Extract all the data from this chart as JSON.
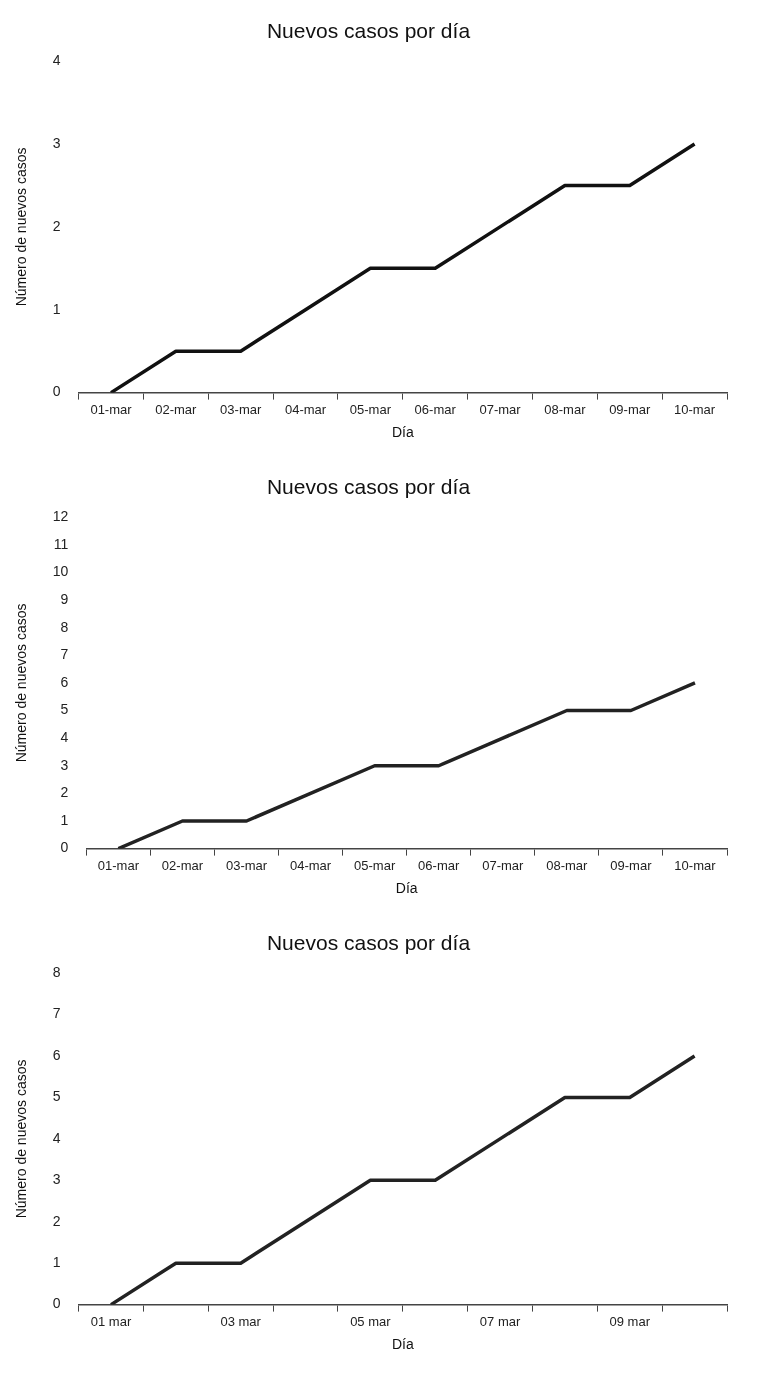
{
  "chart_data": [
    {
      "type": "line",
      "title": "Nuevos casos por día",
      "xlabel": "Día",
      "ylabel": "Número de nuevos casos",
      "categories": [
        "01-mar",
        "02-mar",
        "03-mar",
        "04-mar",
        "05-mar",
        "06-mar",
        "07-mar",
        "08-mar",
        "09-mar",
        "10-mar"
      ],
      "series": [
        {
          "color": "#111111",
          "values": [
            0,
            0.5,
            0.5,
            1,
            1.5,
            1.5,
            2,
            2.5,
            2.5,
            3
          ]
        }
      ],
      "ylim": [
        0,
        4
      ],
      "yticks": [
        0,
        1,
        2,
        3,
        4
      ],
      "grid": false,
      "legend": false,
      "marker": "none",
      "line_style": "solid"
    },
    {
      "type": "line",
      "title": "Nuevos casos por día",
      "xlabel": "Día",
      "ylabel": "Número de nuevos casos",
      "categories": [
        "01-mar",
        "02-mar",
        "03-mar",
        "04-mar",
        "05-mar",
        "06-mar",
        "07-mar",
        "08-mar",
        "09-mar",
        "10-mar"
      ],
      "series": [
        {
          "color": "#222222",
          "values": [
            0,
            1,
            1,
            2,
            3,
            3,
            4,
            5,
            5,
            6
          ]
        }
      ],
      "ylim": [
        0,
        12
      ],
      "yticks": [
        0,
        1,
        2,
        3,
        4,
        5,
        6,
        7,
        8,
        9,
        10,
        11,
        12
      ],
      "grid": false,
      "legend": false,
      "marker": "none",
      "line_style": "solid"
    },
    {
      "type": "line",
      "title": "Nuevos casos por día",
      "xlabel": "Día",
      "ylabel": "Número de nuevos casos",
      "categories": [
        "01 mar",
        null,
        "03 mar",
        null,
        "05 mar",
        null,
        "07 mar",
        null,
        "09 mar",
        null
      ],
      "series": [
        {
          "color": "#222222",
          "values": [
            0,
            1,
            1,
            2,
            3,
            3,
            4,
            5,
            5,
            6
          ]
        }
      ],
      "ylim": [
        0,
        8
      ],
      "yticks": [
        0,
        1,
        2,
        3,
        4,
        5,
        6,
        7,
        8
      ],
      "grid": false,
      "legend": false,
      "marker": "none",
      "line_style": "solid"
    }
  ]
}
